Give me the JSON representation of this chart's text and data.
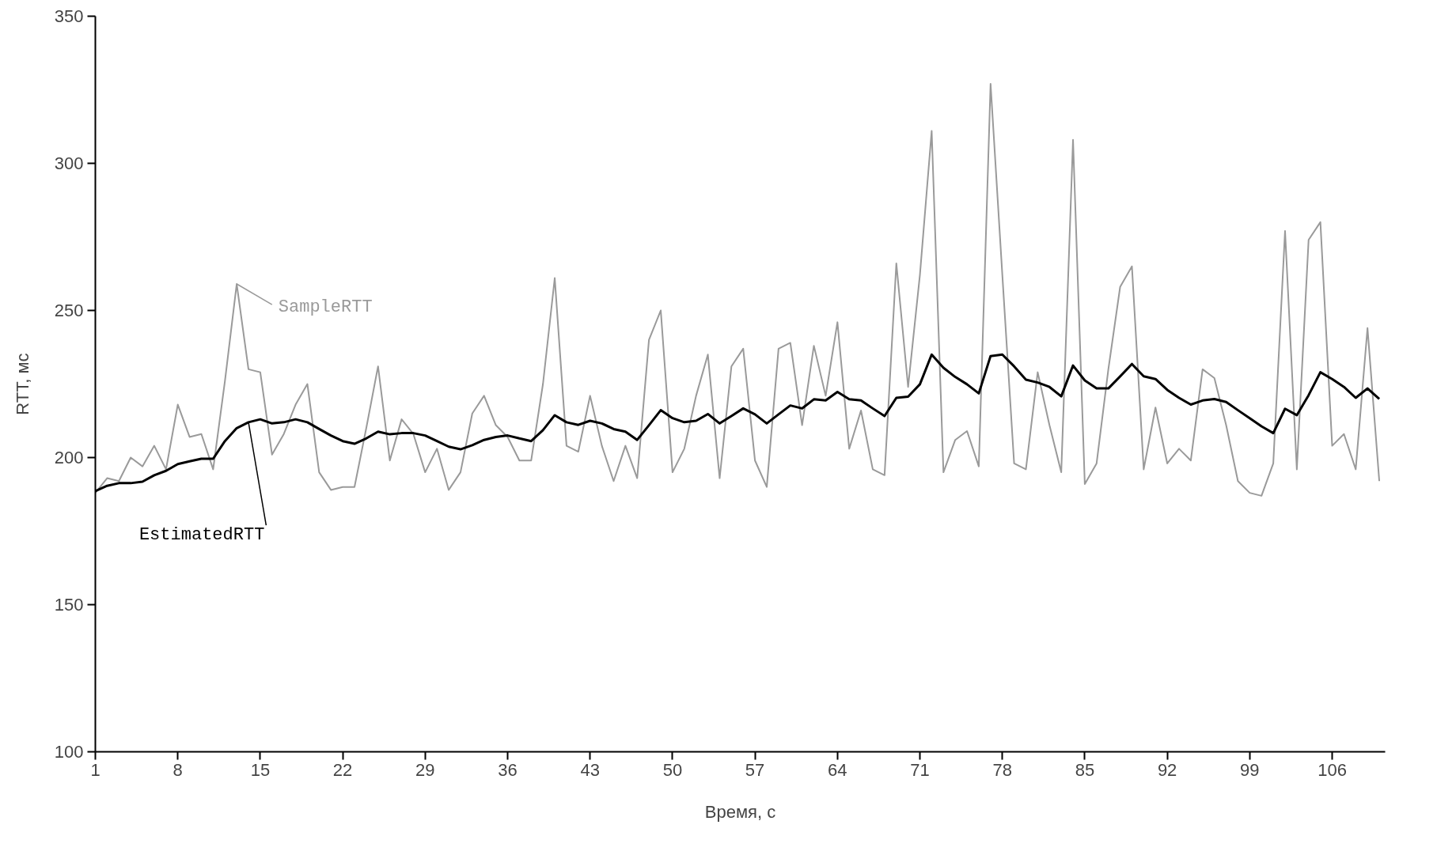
{
  "chart_data": {
    "type": "line",
    "xlabel": "Время, с",
    "ylabel": "RTT, мс",
    "x": [
      1,
      2,
      3,
      4,
      5,
      6,
      7,
      8,
      9,
      10,
      11,
      12,
      13,
      14,
      15,
      16,
      17,
      18,
      19,
      20,
      21,
      22,
      23,
      24,
      25,
      26,
      27,
      28,
      29,
      30,
      31,
      32,
      33,
      34,
      35,
      36,
      37,
      38,
      39,
      40,
      41,
      42,
      43,
      44,
      45,
      46,
      47,
      48,
      49,
      50,
      51,
      52,
      53,
      54,
      55,
      56,
      57,
      58,
      59,
      60,
      61,
      62,
      63,
      64,
      65,
      66,
      67,
      68,
      69,
      70,
      71,
      72,
      73,
      74,
      75,
      76,
      77,
      78,
      79,
      80,
      81,
      82,
      83,
      84,
      85,
      86,
      87,
      88,
      89,
      90,
      91,
      92,
      93,
      94,
      95,
      96,
      97,
      98,
      99,
      100,
      101,
      102,
      103,
      104,
      105,
      106,
      107,
      108,
      109,
      110
    ],
    "series": [
      {
        "name": "SampleRTT",
        "color": "#9a9a9a",
        "line_style": "solid",
        "values": [
          188,
          193,
          192,
          200,
          197,
          204,
          196,
          218,
          207,
          208,
          196,
          226,
          259,
          230,
          229,
          201,
          208,
          218,
          225,
          195,
          189,
          190,
          190,
          210,
          231,
          199,
          213,
          208,
          195,
          203,
          189,
          195,
          215,
          221,
          211,
          207,
          199,
          199,
          225,
          261,
          204,
          202,
          221,
          204,
          192,
          204,
          193,
          240,
          250,
          195,
          203,
          221,
          235,
          193,
          231,
          237,
          199,
          190,
          237,
          239,
          211,
          238,
          221,
          246,
          203,
          216,
          196,
          194,
          266,
          224,
          262,
          311,
          195,
          206,
          209,
          197,
          327,
          262,
          198,
          196,
          229,
          211,
          195,
          308,
          191,
          198,
          230,
          258,
          265,
          196,
          217,
          198,
          203,
          199,
          230,
          227,
          211,
          192,
          188,
          187,
          198,
          277,
          196,
          274,
          280,
          204,
          208,
          196,
          244,
          192
        ]
      },
      {
        "name": "EstimatedRTT",
        "color": "#000000",
        "line_style": "solid",
        "values": [
          188.6,
          190.4,
          191.3,
          191.3,
          191.8,
          194,
          195.5,
          197.8,
          198.7,
          199.6,
          199.6,
          205.6,
          210,
          212,
          213,
          211.6,
          212,
          213,
          212,
          209.7,
          207.5,
          205.6,
          204.7,
          206.5,
          208.8,
          207.9,
          208.3,
          208.3,
          207.5,
          205.6,
          203.7,
          202.8,
          204.2,
          206,
          207,
          207.5,
          206.5,
          205.6,
          209.3,
          214.4,
          212,
          211.1,
          212.5,
          211.6,
          209.7,
          208.8,
          206,
          211,
          216.1,
          213.4,
          212,
          212.5,
          214.8,
          211.6,
          214.1,
          216.7,
          214.7,
          211.6,
          214.7,
          217.7,
          216.7,
          219.8,
          219.4,
          222.3,
          219.8,
          219.4,
          216.7,
          214.1,
          220.3,
          220.7,
          224.9,
          235,
          230.5,
          227.4,
          224.9,
          221.8,
          234.5,
          235,
          231,
          226.5,
          225.5,
          224,
          220.8,
          231.3,
          226.2,
          223.5,
          223.5,
          227.6,
          231.8,
          227.6,
          226.7,
          223,
          220.3,
          218,
          219.4,
          219.9,
          218.9,
          216.1,
          213.4,
          210.6,
          208.3,
          216.6,
          214.4,
          221.2,
          229,
          226.7,
          224,
          220.3,
          223.5,
          219.9
        ]
      }
    ],
    "xlim": [
      1,
      110.5
    ],
    "xticks": [
      1,
      8,
      15,
      22,
      29,
      36,
      43,
      50,
      57,
      64,
      71,
      78,
      85,
      92,
      99,
      106
    ],
    "ylim": [
      100,
      350
    ],
    "yticks": [
      100,
      150,
      200,
      250,
      300,
      350
    ],
    "grid": false,
    "marker": "none"
  }
}
